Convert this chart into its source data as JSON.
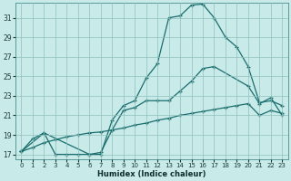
{
  "xlabel": "Humidex (Indice chaleur)",
  "bg_color": "#c8eae8",
  "grid_color": "#8fbfbd",
  "line_color": "#1a6e6e",
  "xlim": [
    -0.5,
    23.5
  ],
  "ylim": [
    16.5,
    32.5
  ],
  "xticks": [
    0,
    1,
    2,
    3,
    4,
    5,
    6,
    7,
    8,
    9,
    10,
    11,
    12,
    13,
    14,
    15,
    16,
    17,
    18,
    19,
    20,
    21,
    22,
    23
  ],
  "yticks": [
    17,
    19,
    21,
    23,
    25,
    27,
    29,
    31
  ],
  "line1_x": [
    0,
    1,
    2,
    3,
    4,
    5,
    6,
    7,
    8,
    9,
    10,
    11,
    12,
    13,
    14,
    15,
    16,
    17,
    18,
    19,
    20,
    21,
    22,
    23
  ],
  "line1_y": [
    17.3,
    17.7,
    18.2,
    18.5,
    18.8,
    19.0,
    19.2,
    19.3,
    19.5,
    19.7,
    20.0,
    20.2,
    20.5,
    20.7,
    21.0,
    21.2,
    21.4,
    21.6,
    21.8,
    22.0,
    22.2,
    21.0,
    21.5,
    21.2
  ],
  "line2_x": [
    0,
    1,
    2,
    3,
    4,
    5,
    6,
    7,
    8,
    9,
    10,
    11,
    12,
    13,
    14,
    15,
    16,
    17,
    18,
    19,
    20,
    21,
    22,
    23
  ],
  "line2_y": [
    17.3,
    18.6,
    19.2,
    17.0,
    17.0,
    17.0,
    17.0,
    17.0,
    20.5,
    22.0,
    22.5,
    24.8,
    26.3,
    31.0,
    31.2,
    32.3,
    32.4,
    31.0,
    29.0,
    28.0,
    26.0,
    22.3,
    22.5,
    22.0
  ],
  "line3_x": [
    0,
    2,
    6,
    7,
    8,
    9,
    10,
    11,
    12,
    13,
    14,
    15,
    16,
    17,
    20,
    21,
    22,
    23
  ],
  "line3_y": [
    17.3,
    19.2,
    17.0,
    17.2,
    19.5,
    21.5,
    21.8,
    22.5,
    22.5,
    22.5,
    23.5,
    24.5,
    25.8,
    26.0,
    24.0,
    22.2,
    22.8,
    21.0
  ]
}
